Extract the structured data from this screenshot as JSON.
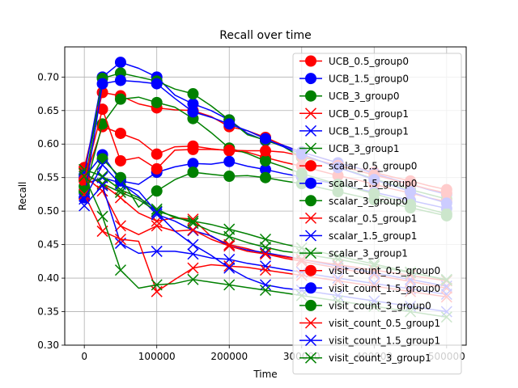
{
  "chart_data": {
    "type": "line",
    "title": "Recall over time",
    "xlabel": "Time",
    "ylabel": "Recall",
    "xlim": [
      -27000,
      527000
    ],
    "ylim": [
      0.3,
      0.745
    ],
    "xticks": [
      0,
      100000,
      200000,
      300000,
      400000,
      500000
    ],
    "xtick_labels": [
      "0",
      "100000",
      "200000",
      "300000",
      "400000",
      "500000"
    ],
    "yticks": [
      0.3,
      0.35,
      0.4,
      0.45,
      0.5,
      0.55,
      0.6,
      0.65,
      0.7
    ],
    "ytick_labels": [
      "0.30",
      "0.35",
      "0.40",
      "0.45",
      "0.50",
      "0.55",
      "0.60",
      "0.65",
      "0.70"
    ],
    "grid": true,
    "legend_position": "upper right",
    "x": [
      0,
      25000,
      50000,
      75000,
      100000,
      125000,
      150000,
      175000,
      200000,
      225000,
      250000,
      275000,
      300000,
      325000,
      350000,
      375000,
      400000,
      425000,
      450000,
      475000,
      500000
    ],
    "series": [
      {
        "name": "UCB_0.5_group0",
        "color": "#ff0000",
        "marker": "o",
        "values": [
          0.565,
          0.677,
          0.672,
          0.66,
          0.654,
          0.651,
          0.65,
          0.641,
          0.626,
          0.62,
          0.61,
          0.598,
          0.588,
          0.58,
          0.572,
          0.565,
          0.558,
          0.551,
          0.545,
          0.538,
          0.532
        ]
      },
      {
        "name": "UCB_1.5_group0",
        "color": "#0000ff",
        "marker": "o",
        "values": [
          0.554,
          0.7,
          0.722,
          0.713,
          0.7,
          0.673,
          0.66,
          0.65,
          0.636,
          0.616,
          0.605,
          0.598,
          0.588,
          0.58,
          0.572,
          0.565,
          0.556,
          0.548,
          0.54,
          0.532,
          0.525
        ]
      },
      {
        "name": "UCB_3_group0",
        "color": "#008000",
        "marker": "o",
        "values": [
          0.537,
          0.698,
          0.706,
          0.7,
          0.694,
          0.682,
          0.675,
          0.657,
          0.636,
          0.614,
          0.606,
          0.596,
          0.58,
          0.575,
          0.565,
          0.557,
          0.548,
          0.54,
          0.532,
          0.525,
          0.518
        ]
      },
      {
        "name": "UCB_0.5_group1",
        "color": "#ff0000",
        "marker": "x",
        "values": [
          0.555,
          0.54,
          0.52,
          0.497,
          0.485,
          0.49,
          0.488,
          0.462,
          0.45,
          0.444,
          0.436,
          0.43,
          0.425,
          0.42,
          0.415,
          0.41,
          0.405,
          0.4,
          0.395,
          0.39,
          0.385
        ]
      },
      {
        "name": "UCB_1.5_group1",
        "color": "#0000ff",
        "marker": "x",
        "values": [
          0.54,
          0.55,
          0.542,
          0.522,
          0.495,
          0.485,
          0.471,
          0.463,
          0.448,
          0.442,
          0.438,
          0.433,
          0.428,
          0.423,
          0.418,
          0.413,
          0.408,
          0.403,
          0.398,
          0.393,
          0.388
        ]
      },
      {
        "name": "UCB_3_group1",
        "color": "#008000",
        "marker": "x",
        "values": [
          0.556,
          0.541,
          0.528,
          0.517,
          0.5,
          0.492,
          0.482,
          0.47,
          0.462,
          0.453,
          0.446,
          0.44,
          0.437,
          0.432,
          0.428,
          0.423,
          0.418,
          0.413,
          0.408,
          0.403,
          0.398
        ]
      },
      {
        "name": "scalar_0.5_group0",
        "color": "#ff0000",
        "marker": "o",
        "values": [
          0.545,
          0.626,
          0.616,
          0.606,
          0.585,
          0.596,
          0.597,
          0.593,
          0.59,
          0.588,
          0.58,
          0.573,
          0.567,
          0.56,
          0.553,
          0.547,
          0.54,
          0.533,
          0.527,
          0.52,
          0.514
        ]
      },
      {
        "name": "scalar_1.5_group0",
        "color": "#0000ff",
        "marker": "o",
        "values": [
          0.55,
          0.584,
          0.545,
          0.54,
          0.558,
          0.566,
          0.571,
          0.57,
          0.574,
          0.567,
          0.562,
          0.556,
          0.551,
          0.545,
          0.54,
          0.534,
          0.528,
          0.522,
          0.516,
          0.51,
          0.504
        ]
      },
      {
        "name": "scalar_3_group0",
        "color": "#008000",
        "marker": "o",
        "values": [
          0.528,
          0.63,
          0.667,
          0.67,
          0.662,
          0.655,
          0.638,
          0.617,
          0.594,
          0.586,
          0.575,
          0.566,
          0.556,
          0.548,
          0.54,
          0.533,
          0.526,
          0.518,
          0.51,
          0.503,
          0.496
        ]
      },
      {
        "name": "scalar_0.5_group1",
        "color": "#ff0000",
        "marker": "x",
        "values": [
          0.552,
          0.53,
          0.478,
          0.465,
          0.478,
          0.47,
          0.472,
          0.458,
          0.448,
          0.44,
          0.436,
          0.432,
          0.428,
          0.424,
          0.42,
          0.416,
          0.412,
          0.408,
          0.404,
          0.4,
          0.396
        ]
      },
      {
        "name": "scalar_1.5_group1",
        "color": "#0000ff",
        "marker": "x",
        "values": [
          0.508,
          0.538,
          0.452,
          0.437,
          0.44,
          0.44,
          0.436,
          0.43,
          0.428,
          0.422,
          0.418,
          0.413,
          0.409,
          0.404,
          0.4,
          0.396,
          0.392,
          0.388,
          0.384,
          0.38,
          0.376
        ]
      },
      {
        "name": "scalar_3_group1",
        "color": "#008000",
        "marker": "x",
        "values": [
          0.562,
          0.552,
          0.532,
          0.52,
          0.503,
          0.49,
          0.485,
          0.48,
          0.473,
          0.466,
          0.458,
          0.451,
          0.445,
          0.439,
          0.433,
          0.427,
          0.421,
          0.415,
          0.409,
          0.403,
          0.397
        ]
      },
      {
        "name": "visit_count_0.5_group0",
        "color": "#ff0000",
        "marker": "o",
        "values": [
          0.547,
          0.652,
          0.575,
          0.58,
          0.563,
          0.591,
          0.592,
          0.592,
          0.591,
          0.59,
          0.59,
          0.588,
          0.582,
          0.575,
          0.568,
          0.561,
          0.554,
          0.547,
          0.54,
          0.533,
          0.527
        ]
      },
      {
        "name": "visit_count_1.5_group0",
        "color": "#0000ff",
        "marker": "o",
        "values": [
          0.52,
          0.69,
          0.695,
          0.693,
          0.69,
          0.668,
          0.648,
          0.64,
          0.63,
          0.62,
          0.608,
          0.596,
          0.585,
          0.575,
          0.565,
          0.556,
          0.547,
          0.538,
          0.529,
          0.52,
          0.512
        ]
      },
      {
        "name": "visit_count_3_group0",
        "color": "#008000",
        "marker": "o",
        "values": [
          0.53,
          0.578,
          0.55,
          0.506,
          0.53,
          0.547,
          0.558,
          0.555,
          0.552,
          0.553,
          0.55,
          0.545,
          0.541,
          0.535,
          0.529,
          0.523,
          0.517,
          0.511,
          0.505,
          0.499,
          0.493
        ]
      },
      {
        "name": "visit_count_0.5_group1",
        "color": "#ff0000",
        "marker": "x",
        "values": [
          0.525,
          0.47,
          0.458,
          0.455,
          0.38,
          0.398,
          0.415,
          0.42,
          0.418,
          0.416,
          0.412,
          0.408,
          0.404,
          0.4,
          0.396,
          0.392,
          0.388,
          0.384,
          0.38,
          0.376,
          0.372
        ]
      },
      {
        "name": "visit_count_1.5_group1",
        "color": "#0000ff",
        "marker": "x",
        "values": [
          0.518,
          0.569,
          0.54,
          0.53,
          0.498,
          0.47,
          0.45,
          0.434,
          0.415,
          0.4,
          0.39,
          0.385,
          0.382,
          0.378,
          0.374,
          0.37,
          0.366,
          0.362,
          0.358,
          0.354,
          0.35
        ]
      },
      {
        "name": "visit_count_3_group1",
        "color": "#008000",
        "marker": "x",
        "values": [
          0.552,
          0.492,
          0.412,
          0.385,
          0.39,
          0.392,
          0.398,
          0.394,
          0.39,
          0.386,
          0.382,
          0.378,
          0.374,
          0.37,
          0.366,
          0.362,
          0.358,
          0.354,
          0.35,
          0.346,
          0.342
        ]
      }
    ]
  }
}
